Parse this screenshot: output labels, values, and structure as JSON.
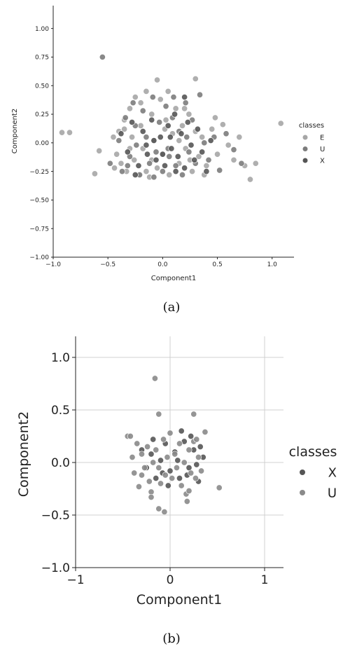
{
  "captions": {
    "a": "(a)",
    "b": "(b)"
  },
  "chart_data": [
    {
      "type": "scatter",
      "xlabel": "Component1",
      "ylabel": "Component2",
      "xlim": [
        -1.0,
        1.2
      ],
      "ylim": [
        -1.0,
        1.2
      ],
      "xticks": [
        -1.0,
        -0.5,
        0.0,
        0.5,
        1.0
      ],
      "yticks": [
        -1.0,
        -0.75,
        -0.5,
        -0.25,
        0.0,
        0.25,
        0.5,
        0.75,
        1.0
      ],
      "xtick_labels": [
        "−1.0",
        "−0.5",
        "0.0",
        "0.5",
        "1.0"
      ],
      "ytick_labels": [
        "−1.00",
        "−0.75",
        "−0.50",
        "−0.25",
        "0.00",
        "0.25",
        "0.50",
        "0.75",
        "1.00"
      ],
      "grid": false,
      "legend": {
        "title": "classes",
        "position": "right"
      },
      "series": [
        {
          "name": "E",
          "color": "#a6a6a6",
          "points": [
            [
              -0.92,
              0.09
            ],
            [
              -0.85,
              0.09
            ],
            [
              -0.62,
              -0.27
            ],
            [
              -0.58,
              -0.07
            ],
            [
              -0.45,
              0.05
            ],
            [
              -0.44,
              -0.22
            ],
            [
              -0.42,
              -0.1
            ],
            [
              -0.4,
              0.1
            ],
            [
              -0.38,
              -0.18
            ],
            [
              -0.35,
              0.2
            ],
            [
              -0.33,
              -0.25
            ],
            [
              -0.3,
              0.3
            ],
            [
              -0.28,
              0.05
            ],
            [
              -0.26,
              -0.15
            ],
            [
              -0.25,
              0.4
            ],
            [
              -0.22,
              -0.28
            ],
            [
              -0.2,
              0.15
            ],
            [
              -0.18,
              -0.05
            ],
            [
              -0.15,
              0.45
            ],
            [
              -0.12,
              -0.3
            ],
            [
              -0.1,
              0.25
            ],
            [
              -0.08,
              0.02
            ],
            [
              -0.05,
              -0.22
            ],
            [
              -0.02,
              0.38
            ],
            [
              0.0,
              -0.1
            ],
            [
              0.03,
              0.2
            ],
            [
              0.06,
              -0.28
            ],
            [
              0.09,
              0.08
            ],
            [
              0.12,
              0.3
            ],
            [
              0.15,
              -0.18
            ],
            [
              0.18,
              0.15
            ],
            [
              0.21,
              -0.05
            ],
            [
              0.24,
              0.25
            ],
            [
              0.27,
              -0.25
            ],
            [
              0.3,
              0.1
            ],
            [
              0.33,
              -0.12
            ],
            [
              0.36,
              0.05
            ],
            [
              0.4,
              -0.2
            ],
            [
              0.45,
              0.12
            ],
            [
              0.5,
              -0.1
            ],
            [
              0.55,
              0.16
            ],
            [
              0.6,
              -0.02
            ],
            [
              0.65,
              -0.15
            ],
            [
              0.7,
              0.05
            ],
            [
              0.75,
              -0.2
            ],
            [
              0.8,
              -0.32
            ],
            [
              0.85,
              -0.18
            ],
            [
              1.08,
              0.17
            ],
            [
              -0.3,
              -0.05
            ],
            [
              -0.2,
              0.35
            ],
            [
              -0.1,
              -0.15
            ],
            [
              0.05,
              0.45
            ],
            [
              0.15,
              0.02
            ],
            [
              0.25,
              -0.15
            ],
            [
              -0.35,
              0.12
            ],
            [
              -0.15,
              -0.25
            ],
            [
              0.02,
              0.12
            ],
            [
              0.2,
              0.3
            ],
            [
              0.38,
              -0.28
            ],
            [
              0.48,
              0.22
            ],
            [
              -0.05,
              0.55
            ],
            [
              0.3,
              0.56
            ]
          ]
        },
        {
          "name": "U",
          "color": "#7c7c7c",
          "points": [
            [
              -0.55,
              0.75
            ],
            [
              -0.48,
              -0.18
            ],
            [
              -0.4,
              0.02
            ],
            [
              -0.37,
              -0.25
            ],
            [
              -0.34,
              0.22
            ],
            [
              -0.3,
              -0.12
            ],
            [
              -0.27,
              0.35
            ],
            [
              -0.24,
              -0.02
            ],
            [
              -0.21,
              -0.28
            ],
            [
              -0.18,
              0.28
            ],
            [
              -0.15,
              0.05
            ],
            [
              -0.12,
              -0.18
            ],
            [
              -0.09,
              0.4
            ],
            [
              -0.06,
              -0.08
            ],
            [
              -0.03,
              0.18
            ],
            [
              0.0,
              -0.25
            ],
            [
              0.03,
              0.32
            ],
            [
              0.06,
              -0.12
            ],
            [
              0.09,
              0.22
            ],
            [
              0.12,
              -0.2
            ],
            [
              0.15,
              0.1
            ],
            [
              0.18,
              -0.28
            ],
            [
              0.21,
              0.35
            ],
            [
              0.24,
              -0.08
            ],
            [
              0.27,
              0.2
            ],
            [
              0.3,
              -0.18
            ],
            [
              0.34,
              0.42
            ],
            [
              0.38,
              0.0
            ],
            [
              0.42,
              -0.15
            ],
            [
              0.47,
              0.05
            ],
            [
              0.52,
              -0.24
            ],
            [
              0.58,
              0.08
            ],
            [
              0.65,
              -0.06
            ],
            [
              0.72,
              -0.18
            ],
            [
              -0.25,
              0.15
            ],
            [
              -0.08,
              -0.3
            ],
            [
              0.1,
              0.4
            ],
            [
              0.22,
              0.05
            ],
            [
              -0.32,
              -0.2
            ],
            [
              0.05,
              -0.05
            ]
          ]
        },
        {
          "name": "X",
          "color": "#555555",
          "points": [
            [
              -0.38,
              0.08
            ],
            [
              -0.32,
              -0.08
            ],
            [
              -0.28,
              0.18
            ],
            [
              -0.22,
              -0.2
            ],
            [
              -0.18,
              0.1
            ],
            [
              -0.14,
              -0.1
            ],
            [
              -0.1,
              0.2
            ],
            [
              -0.06,
              -0.15
            ],
            [
              -0.02,
              0.05
            ],
            [
              0.02,
              -0.2
            ],
            [
              0.05,
              0.15
            ],
            [
              0.08,
              -0.05
            ],
            [
              0.11,
              0.25
            ],
            [
              0.14,
              -0.12
            ],
            [
              0.17,
              0.08
            ],
            [
              0.2,
              -0.22
            ],
            [
              0.23,
              0.18
            ],
            [
              0.26,
              -0.02
            ],
            [
              0.2,
              0.4
            ],
            [
              0.29,
              -0.15
            ],
            [
              0.32,
              0.12
            ],
            [
              0.36,
              -0.08
            ],
            [
              0.4,
              -0.25
            ],
            [
              0.44,
              0.02
            ],
            [
              -0.08,
              0.02
            ],
            [
              0.0,
              -0.1
            ],
            [
              0.07,
              0.05
            ],
            [
              -0.15,
              -0.02
            ],
            [
              0.12,
              -0.25
            ],
            [
              -0.25,
              -0.28
            ]
          ]
        }
      ]
    },
    {
      "type": "scatter",
      "xlabel": "Component1",
      "ylabel": "Component2",
      "xlim": [
        -1.0,
        1.2
      ],
      "ylim": [
        -1.0,
        1.2
      ],
      "xticks": [
        -1,
        0,
        1
      ],
      "yticks": [
        -1.0,
        -0.5,
        0.0,
        0.5,
        1.0
      ],
      "xtick_labels": [
        "−1",
        "0",
        "1"
      ],
      "ytick_labels": [
        "−1.0",
        "−0.5",
        "0.0",
        "0.5",
        "1.0"
      ],
      "grid": true,
      "legend": {
        "title": "classes",
        "position": "right"
      },
      "series": [
        {
          "name": "X",
          "color": "#555555",
          "points": [
            [
              -0.3,
              0.12
            ],
            [
              -0.25,
              -0.05
            ],
            [
              -0.2,
              0.08
            ],
            [
              -0.15,
              -0.15
            ],
            [
              -0.1,
              0.02
            ],
            [
              -0.05,
              0.18
            ],
            [
              0.0,
              -0.08
            ],
            [
              0.05,
              0.1
            ],
            [
              0.1,
              -0.15
            ],
            [
              0.15,
              0.2
            ],
            [
              0.2,
              -0.05
            ],
            [
              0.25,
              0.12
            ],
            [
              0.3,
              -0.18
            ],
            [
              0.35,
              0.05
            ],
            [
              0.12,
              0.3
            ],
            [
              -0.02,
              -0.22
            ],
            [
              0.22,
              0.25
            ],
            [
              0.18,
              -0.12
            ],
            [
              0.32,
              0.15
            ],
            [
              -0.18,
              0.22
            ],
            [
              0.08,
              0.02
            ],
            [
              -0.08,
              -0.1
            ],
            [
              0.28,
              -0.02
            ]
          ]
        },
        {
          "name": "U",
          "color": "#8a8a8a",
          "points": [
            [
              -0.16,
              0.8
            ],
            [
              -0.12,
              0.46
            ],
            [
              0.25,
              0.46
            ],
            [
              -0.45,
              0.25
            ],
            [
              -0.4,
              0.05
            ],
            [
              -0.38,
              -0.1
            ],
            [
              -0.35,
              0.18
            ],
            [
              -0.33,
              -0.23
            ],
            [
              -0.3,
              0.08
            ],
            [
              -0.27,
              -0.05
            ],
            [
              -0.24,
              0.15
            ],
            [
              -0.22,
              -0.18
            ],
            [
              -0.2,
              -0.28
            ],
            [
              -0.18,
              0.0
            ],
            [
              -0.15,
              0.12
            ],
            [
              -0.12,
              -0.05
            ],
            [
              -0.1,
              -0.2
            ],
            [
              -0.07,
              0.22
            ],
            [
              -0.05,
              -0.12
            ],
            [
              -0.03,
              0.05
            ],
            [
              0.0,
              0.28
            ],
            [
              0.02,
              -0.15
            ],
            [
              0.05,
              0.08
            ],
            [
              0.07,
              -0.05
            ],
            [
              0.1,
              0.18
            ],
            [
              0.12,
              -0.22
            ],
            [
              0.15,
              0.0
            ],
            [
              0.17,
              -0.3
            ],
            [
              0.2,
              0.12
            ],
            [
              0.22,
              -0.1
            ],
            [
              0.25,
              0.2
            ],
            [
              0.27,
              -0.15
            ],
            [
              0.3,
              0.05
            ],
            [
              0.33,
              -0.08
            ],
            [
              0.37,
              0.29
            ],
            [
              0.52,
              -0.24
            ],
            [
              -0.12,
              -0.44
            ],
            [
              -0.06,
              -0.47
            ],
            [
              0.18,
              -0.37
            ],
            [
              -0.2,
              -0.33
            ],
            [
              -0.42,
              0.25
            ],
            [
              0.2,
              -0.27
            ],
            [
              -0.3,
              -0.12
            ],
            [
              0.28,
              0.22
            ]
          ]
        }
      ]
    }
  ]
}
